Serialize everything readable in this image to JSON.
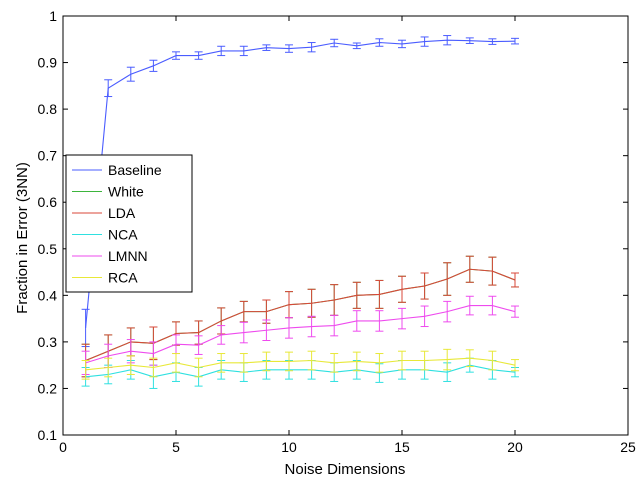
{
  "chart_data": {
    "type": "line",
    "title": "",
    "xlabel": "Noise Dimensions",
    "ylabel": "Fraction in Error (3NN)",
    "xlim": [
      0,
      25
    ],
    "ylim": [
      0.1,
      1.0
    ],
    "xticks": [
      "0",
      "5",
      "10",
      "15",
      "20",
      "25"
    ],
    "yticks": [
      "0.1",
      "0.2",
      "0.3",
      "0.4",
      "0.5",
      "0.6",
      "0.7",
      "0.8",
      "0.9",
      "1"
    ],
    "grid": false,
    "legend_position": "middle-left",
    "error_bars": true,
    "x": [
      1,
      2,
      3,
      4,
      5,
      6,
      7,
      8,
      9,
      10,
      11,
      12,
      13,
      14,
      15,
      16,
      17,
      18,
      19,
      20
    ],
    "series": [
      {
        "name": "Baseline",
        "color": "#4a5cff",
        "values": [
          0.33,
          0.845,
          0.875,
          0.893,
          0.915,
          0.915,
          0.925,
          0.925,
          0.932,
          0.93,
          0.933,
          0.942,
          0.936,
          0.943,
          0.94,
          0.945,
          0.948,
          0.947,
          0.945,
          0.946
        ],
        "errors": [
          0.04,
          0.018,
          0.015,
          0.012,
          0.008,
          0.008,
          0.01,
          0.01,
          0.006,
          0.008,
          0.01,
          0.008,
          0.006,
          0.008,
          0.008,
          0.01,
          0.01,
          0.006,
          0.006,
          0.006
        ]
      },
      {
        "name": "White",
        "color": "#3db53d",
        "values": [
          0.26,
          0.28,
          0.3,
          0.297,
          0.318,
          0.32,
          0.345,
          0.365,
          0.365,
          0.38,
          0.383,
          0.39,
          0.4,
          0.402,
          0.413,
          0.42,
          0.435,
          0.456,
          0.452,
          0.433
        ],
        "errors": [
          0.035,
          0.035,
          0.03,
          0.035,
          0.025,
          0.025,
          0.028,
          0.022,
          0.025,
          0.028,
          0.03,
          0.033,
          0.028,
          0.03,
          0.028,
          0.028,
          0.035,
          0.028,
          0.03,
          0.015
        ]
      },
      {
        "name": "LDA",
        "color": "#d9473a",
        "values": [
          0.26,
          0.28,
          0.3,
          0.297,
          0.318,
          0.32,
          0.345,
          0.365,
          0.365,
          0.38,
          0.383,
          0.39,
          0.4,
          0.402,
          0.413,
          0.42,
          0.435,
          0.456,
          0.452,
          0.433
        ],
        "errors": [
          0.035,
          0.035,
          0.03,
          0.035,
          0.025,
          0.025,
          0.028,
          0.022,
          0.025,
          0.028,
          0.03,
          0.033,
          0.028,
          0.03,
          0.028,
          0.028,
          0.035,
          0.028,
          0.03,
          0.015
        ]
      },
      {
        "name": "NCA",
        "color": "#2fe0e0",
        "values": [
          0.225,
          0.23,
          0.24,
          0.225,
          0.235,
          0.225,
          0.24,
          0.235,
          0.24,
          0.24,
          0.24,
          0.235,
          0.24,
          0.233,
          0.24,
          0.24,
          0.235,
          0.25,
          0.24,
          0.235
        ],
        "errors": [
          0.02,
          0.02,
          0.02,
          0.025,
          0.02,
          0.02,
          0.02,
          0.02,
          0.02,
          0.02,
          0.02,
          0.02,
          0.02,
          0.02,
          0.02,
          0.02,
          0.02,
          0.015,
          0.02,
          0.01
        ]
      },
      {
        "name": "LMNN",
        "color": "#ee4bee",
        "values": [
          0.255,
          0.27,
          0.28,
          0.275,
          0.295,
          0.293,
          0.315,
          0.32,
          0.325,
          0.33,
          0.333,
          0.335,
          0.345,
          0.345,
          0.35,
          0.355,
          0.365,
          0.378,
          0.378,
          0.365
        ],
        "errors": [
          0.025,
          0.025,
          0.025,
          0.025,
          0.02,
          0.02,
          0.02,
          0.022,
          0.022,
          0.022,
          0.022,
          0.022,
          0.022,
          0.022,
          0.022,
          0.022,
          0.022,
          0.02,
          0.02,
          0.012
        ]
      },
      {
        "name": "RCA",
        "color": "#e8e838",
        "values": [
          0.24,
          0.245,
          0.25,
          0.245,
          0.255,
          0.245,
          0.255,
          0.255,
          0.258,
          0.258,
          0.26,
          0.255,
          0.258,
          0.255,
          0.26,
          0.26,
          0.262,
          0.265,
          0.26,
          0.25
        ],
        "errors": [
          0.02,
          0.02,
          0.02,
          0.02,
          0.02,
          0.02,
          0.02,
          0.02,
          0.02,
          0.02,
          0.02,
          0.02,
          0.02,
          0.02,
          0.02,
          0.02,
          0.022,
          0.018,
          0.02,
          0.012
        ]
      }
    ]
  }
}
